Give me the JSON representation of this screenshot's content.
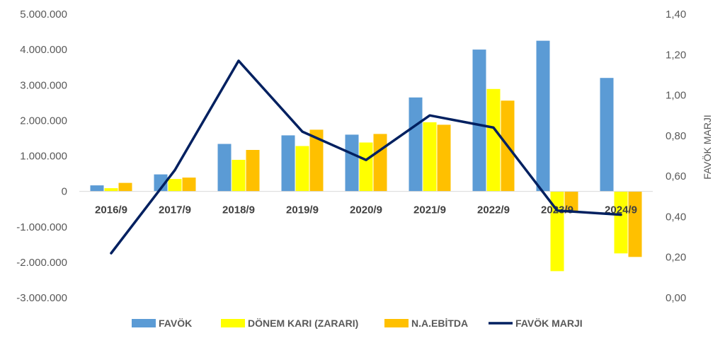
{
  "chart_data": {
    "type": "bar",
    "categories": [
      "2016/9",
      "2017/9",
      "2018/9",
      "2019/9",
      "2020/9",
      "2021/9",
      "2022/9",
      "2023/9",
      "2024/9"
    ],
    "series": [
      {
        "name": "FAVÖK",
        "kind": "bar",
        "color": "#5B9BD5",
        "values": [
          170000,
          480000,
          1340000,
          1580000,
          1600000,
          2650000,
          4000000,
          4250000,
          3200000
        ]
      },
      {
        "name": "DÖNEM KARI (ZARARI)",
        "kind": "bar",
        "color": "#FFFF00",
        "values": [
          90000,
          350000,
          890000,
          1280000,
          1380000,
          1950000,
          2890000,
          -2250000,
          -1750000
        ]
      },
      {
        "name": "N.A.EBİTDA",
        "kind": "bar",
        "color": "#FFC000",
        "values": [
          240000,
          390000,
          1170000,
          1740000,
          1620000,
          1880000,
          2560000,
          -600000,
          -1850000
        ]
      },
      {
        "name": "FAVÖK MARJI",
        "kind": "line",
        "axis": "secondary",
        "color": "#002060",
        "values": [
          0.22,
          0.63,
          1.17,
          0.82,
          0.68,
          0.9,
          0.84,
          0.43,
          0.41
        ]
      }
    ],
    "ylim": [
      -3000000,
      5000000
    ],
    "y_ticks": [
      -3000000,
      -2000000,
      -1000000,
      0,
      1000000,
      2000000,
      3000000,
      4000000,
      5000000
    ],
    "y_tick_labels": [
      "-3.000.000",
      "-2.000.000",
      "-1.000.000",
      "0",
      "1.000.000",
      "2.000.000",
      "3.000.000",
      "4.000.000",
      "5.000.000"
    ],
    "y2lim": [
      0,
      1.4
    ],
    "y2_ticks": [
      0,
      0.2,
      0.4,
      0.6,
      0.8,
      1.0,
      1.2,
      1.4
    ],
    "y2_tick_labels": [
      "0,00",
      "0,20",
      "0,40",
      "0,60",
      "0,80",
      "1,00",
      "1,20",
      "1,40"
    ],
    "y2label": "FAVÖK MARJI",
    "title": "",
    "xlabel": "",
    "ylabel": "",
    "grid": false,
    "legend_position": "bottom"
  }
}
